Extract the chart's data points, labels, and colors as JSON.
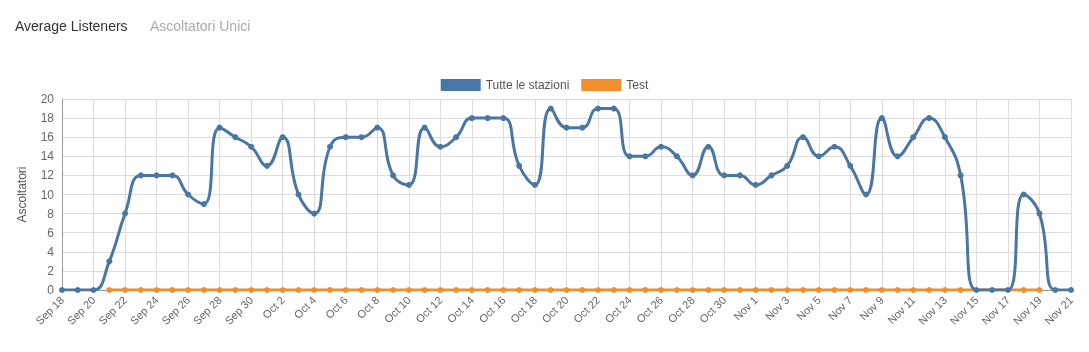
{
  "chart_data": {
    "type": "line",
    "title": "Average Listeners",
    "subtitle": "Ascoltatori Unici",
    "ylabel": "Ascoltatori",
    "categories": [
      "Sep 18",
      null,
      "Sep 20",
      null,
      "Sep 22",
      null,
      "Sep 24",
      null,
      "Sep 26",
      null,
      "Sep 28",
      null,
      "Sep 30",
      null,
      "Oct 2",
      null,
      "Oct 4",
      null,
      "Oct 6",
      null,
      "Oct 8",
      null,
      "Oct 10",
      null,
      "Oct 12",
      null,
      "Oct 14",
      null,
      "Oct 16",
      null,
      "Oct 18",
      null,
      "Oct 20",
      null,
      "Oct 22",
      null,
      "Oct 24",
      null,
      "Oct 26",
      null,
      "Oct 28",
      null,
      "Oct 30",
      null,
      "Nov 1",
      null,
      "Nov 3",
      null,
      "Nov 5",
      null,
      "Nov 7",
      null,
      "Nov 9",
      null,
      "Nov 11",
      null,
      "Nov 13",
      null,
      "Nov 15",
      null,
      "Nov 17",
      null,
      "Nov 19",
      null,
      "Nov 21"
    ],
    "series": [
      {
        "name": "Tutte le stazioni",
        "color": "#4a76a6",
        "values": [
          0,
          0,
          0,
          3,
          8,
          12,
          12,
          12,
          10,
          9,
          17,
          16,
          15,
          13,
          16,
          10,
          8,
          15,
          16,
          16,
          17,
          12,
          11,
          17,
          15,
          16,
          18,
          18,
          18,
          13,
          11,
          19,
          17,
          17,
          19,
          19,
          14,
          14,
          15,
          14,
          12,
          15,
          12,
          12,
          11,
          12,
          13,
          16,
          14,
          15,
          13,
          10,
          18,
          14,
          16,
          18,
          16,
          12,
          0,
          0,
          0,
          10,
          8,
          0,
          0
        ]
      },
      {
        "name": "Test",
        "color": "#f28e2b",
        "values": [
          null,
          null,
          null,
          0,
          0,
          0,
          0,
          0,
          0,
          0,
          0,
          0,
          0,
          0,
          0,
          0,
          0,
          0,
          0,
          0,
          0,
          0,
          0,
          0,
          0,
          0,
          0,
          0,
          0,
          0,
          0,
          0,
          0,
          0,
          0,
          0,
          0,
          0,
          0,
          0,
          0,
          0,
          0,
          0,
          0,
          0,
          0,
          0,
          0,
          0,
          0,
          0,
          0,
          0,
          0,
          0,
          0,
          0,
          null,
          null,
          null,
          0,
          0,
          null,
          null
        ]
      }
    ],
    "ylim": [
      0,
      20
    ],
    "yticks": [
      0,
      2,
      4,
      6,
      8,
      10,
      12,
      14,
      16,
      18,
      20
    ],
    "grid": true,
    "legend": "top",
    "marker": "circle",
    "line_style": "solid"
  }
}
